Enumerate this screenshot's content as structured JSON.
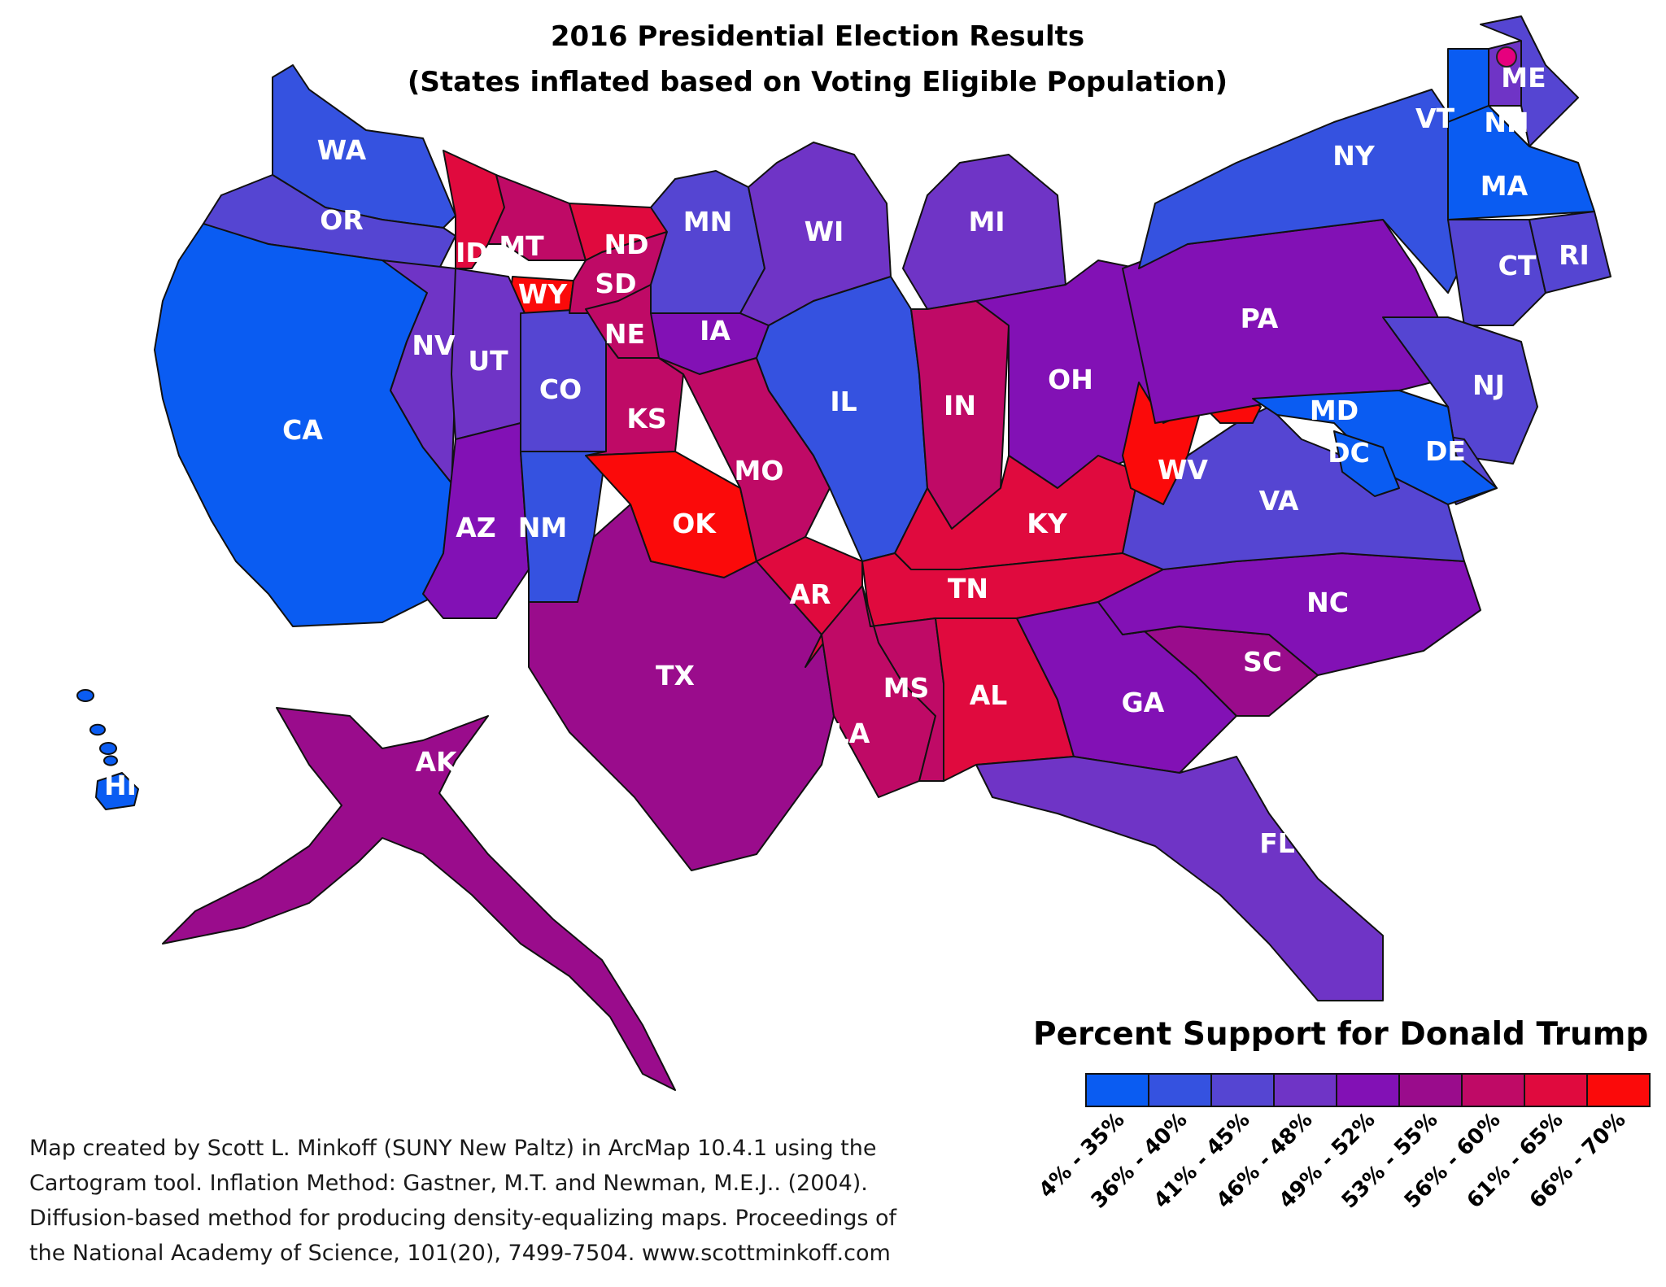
{
  "title": {
    "line1": "2016 Presidential Election Results",
    "line2": "(States inflated based on Voting Eligible Population)"
  },
  "legend": {
    "title": "Percent Support for Donald Trump",
    "bins": [
      {
        "label": "4% - 35%",
        "color": "#0a5cf2"
      },
      {
        "label": "36% - 40%",
        "color": "#3552e0"
      },
      {
        "label": "41% - 45%",
        "color": "#5545d2"
      },
      {
        "label": "46% - 48%",
        "color": "#6f34c6"
      },
      {
        "label": "49% - 52%",
        "color": "#8211b5"
      },
      {
        "label": "53% - 55%",
        "color": "#9a0c8c"
      },
      {
        "label": "56% - 60%",
        "color": "#bf0a66"
      },
      {
        "label": "61% - 65%",
        "color": "#e00a3e"
      },
      {
        "label": "66% - 70%",
        "color": "#fb0a0a"
      }
    ]
  },
  "states": [
    {
      "abbr": "WA",
      "bin": 1
    },
    {
      "abbr": "OR",
      "bin": 2
    },
    {
      "abbr": "CA",
      "bin": 0
    },
    {
      "abbr": "NV",
      "bin": 3
    },
    {
      "abbr": "ID",
      "bin": 7
    },
    {
      "abbr": "MT",
      "bin": 6
    },
    {
      "abbr": "WY",
      "bin": 8
    },
    {
      "abbr": "UT",
      "bin": 3
    },
    {
      "abbr": "CO",
      "bin": 2
    },
    {
      "abbr": "AZ",
      "bin": 4
    },
    {
      "abbr": "NM",
      "bin": 1
    },
    {
      "abbr": "ND",
      "bin": 7
    },
    {
      "abbr": "SD",
      "bin": 6
    },
    {
      "abbr": "NE",
      "bin": 6
    },
    {
      "abbr": "KS",
      "bin": 6
    },
    {
      "abbr": "OK",
      "bin": 8
    },
    {
      "abbr": "TX",
      "bin": 5
    },
    {
      "abbr": "MN",
      "bin": 2
    },
    {
      "abbr": "IA",
      "bin": 4
    },
    {
      "abbr": "MO",
      "bin": 6
    },
    {
      "abbr": "AR",
      "bin": 7
    },
    {
      "abbr": "LA",
      "bin": 6
    },
    {
      "abbr": "WI",
      "bin": 3
    },
    {
      "abbr": "IL",
      "bin": 1
    },
    {
      "abbr": "MI",
      "bin": 3
    },
    {
      "abbr": "IN",
      "bin": 6
    },
    {
      "abbr": "OH",
      "bin": 4
    },
    {
      "abbr": "KY",
      "bin": 7
    },
    {
      "abbr": "TN",
      "bin": 7
    },
    {
      "abbr": "MS",
      "bin": 6
    },
    {
      "abbr": "AL",
      "bin": 7
    },
    {
      "abbr": "GA",
      "bin": 4
    },
    {
      "abbr": "FL",
      "bin": 3
    },
    {
      "abbr": "SC",
      "bin": 5
    },
    {
      "abbr": "NC",
      "bin": 4
    },
    {
      "abbr": "VA",
      "bin": 2
    },
    {
      "abbr": "WV",
      "bin": 8
    },
    {
      "abbr": "PA",
      "bin": 4
    },
    {
      "abbr": "NY",
      "bin": 1
    },
    {
      "abbr": "VT",
      "bin": 0
    },
    {
      "abbr": "NH",
      "bin": 3
    },
    {
      "abbr": "ME",
      "bin": 2
    },
    {
      "abbr": "MA",
      "bin": 0
    },
    {
      "abbr": "CT",
      "bin": 2
    },
    {
      "abbr": "RI",
      "bin": 2
    },
    {
      "abbr": "NJ",
      "bin": 2
    },
    {
      "abbr": "DE",
      "bin": 2
    },
    {
      "abbr": "MD",
      "bin": 0
    },
    {
      "abbr": "DC",
      "bin": 0
    },
    {
      "abbr": "AK",
      "bin": 5
    },
    {
      "abbr": "HI",
      "bin": 0
    }
  ],
  "credit": [
    "Map created by Scott L. Minkoff (SUNY New Paltz) in ArcMap 10.4.1 using the",
    "Cartogram tool.  Inflation Method: Gastner, M.T. and Newman, M.E.J.. (2004).",
    "Diffusion-based method for producing density-equalizing maps. Proceedings of",
    "the National Academy of Science, 101(20), 7499-7504. www.scottminkoff.com"
  ]
}
